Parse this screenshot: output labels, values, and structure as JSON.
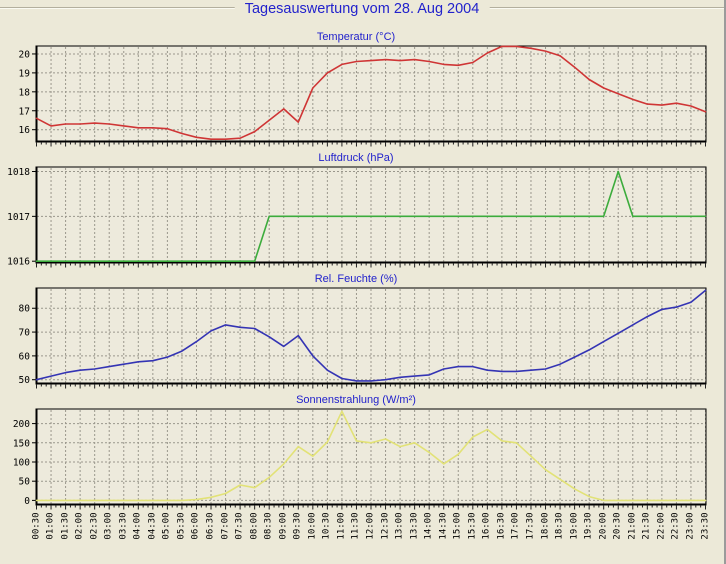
{
  "header": {
    "title": "Tagesauswertung vom 28. Aug 2004"
  },
  "colors": {
    "page_background": "#ece9d8",
    "plot_background": "#edeadc",
    "title_blue": "#2222cc",
    "grid_gray": "#9a978c",
    "axis_black": "#000000",
    "temperature_line": "#cf3535",
    "pressure_line": "#3cac3c",
    "humidity_line": "#3434b4",
    "solar_line": "#e2e276"
  },
  "chart_data": {
    "type": "line",
    "layout": "4 stacked panels, shared x axis, grid on, no legend",
    "x_labels": [
      "00:30",
      "01:00",
      "01:30",
      "02:00",
      "02:30",
      "03:00",
      "03:30",
      "04:00",
      "04:30",
      "05:00",
      "05:30",
      "06:00",
      "06:30",
      "07:00",
      "07:30",
      "08:00",
      "08:30",
      "09:00",
      "09:30",
      "10:00",
      "10:30",
      "11:00",
      "11:30",
      "12:00",
      "12:30",
      "13:00",
      "13:30",
      "14:00",
      "14:30",
      "15:00",
      "15:30",
      "16:00",
      "16:30",
      "17:00",
      "17:30",
      "18:00",
      "18:30",
      "19:00",
      "19:30",
      "20:00",
      "20:30",
      "21:00",
      "21:30",
      "22:00",
      "22:30",
      "23:00",
      "23:30"
    ],
    "panels": [
      {
        "title": "Temperatur (°C)",
        "color": "#cf3535",
        "yticks": [
          16,
          17,
          18,
          19,
          20
        ],
        "ylim": [
          15.35,
          20.42
        ],
        "values": [
          16.6,
          16.2,
          16.3,
          16.3,
          16.35,
          16.3,
          16.2,
          16.1,
          16.1,
          16.05,
          15.8,
          15.6,
          15.5,
          15.5,
          15.55,
          15.9,
          16.5,
          17.1,
          16.4,
          18.2,
          19.0,
          19.45,
          19.6,
          19.65,
          19.7,
          19.65,
          19.7,
          19.6,
          19.45,
          19.4,
          19.55,
          20.05,
          20.4,
          20.4,
          20.3,
          20.15,
          19.9,
          19.3,
          18.65,
          18.2,
          17.9,
          17.6,
          17.35,
          17.3,
          17.4,
          17.25,
          16.95
        ]
      },
      {
        "title": "Luftdruck (hPa)",
        "color": "#3cac3c",
        "yticks": [
          1016,
          1017,
          1018
        ],
        "ylim": [
          1015.96,
          1018.1
        ],
        "values": [
          1016,
          1016,
          1016,
          1016,
          1016,
          1016,
          1016,
          1016,
          1016,
          1016,
          1016,
          1016,
          1016,
          1016,
          1016,
          1016,
          1017,
          1017,
          1017,
          1017,
          1017,
          1017,
          1017,
          1017,
          1017,
          1017,
          1017,
          1017,
          1017,
          1017,
          1017,
          1017,
          1017,
          1017,
          1017,
          1017,
          1017,
          1017,
          1017,
          1017,
          1018,
          1017,
          1017,
          1017,
          1017,
          1017,
          1017
        ]
      },
      {
        "title": "Rel. Feuchte (%)",
        "color": "#3434b4",
        "yticks": [
          50,
          60,
          70,
          80
        ],
        "ylim": [
          48.2,
          88.5
        ],
        "values": [
          50,
          51.5,
          53,
          54,
          54.5,
          55.5,
          56.5,
          57.5,
          58,
          59.5,
          62,
          66,
          70.5,
          73,
          72,
          71.5,
          68,
          64,
          68.5,
          60,
          54,
          50.5,
          49.5,
          49.5,
          50,
          51,
          51.5,
          52,
          54.5,
          55.5,
          55.5,
          54,
          53.5,
          53.5,
          54,
          54.5,
          56.5,
          59.5,
          62.5,
          66,
          69.5,
          73,
          76.5,
          79.5,
          80.5,
          82.5,
          87.5
        ]
      },
      {
        "title": "Sonnenstrahlung (W/m²)",
        "color": "#e2e276",
        "yticks": [
          0,
          50,
          100,
          150,
          200
        ],
        "ylim": [
          -12,
          238
        ],
        "values": [
          0,
          0,
          0,
          0,
          0,
          0,
          0,
          0,
          0,
          0,
          0,
          2,
          8,
          18,
          40,
          33,
          60,
          95,
          140,
          115,
          152,
          232,
          155,
          150,
          160,
          140,
          150,
          125,
          95,
          120,
          165,
          185,
          155,
          150,
          115,
          80,
          55,
          30,
          10,
          0,
          0,
          0,
          0,
          0,
          0,
          0,
          0
        ]
      }
    ]
  }
}
